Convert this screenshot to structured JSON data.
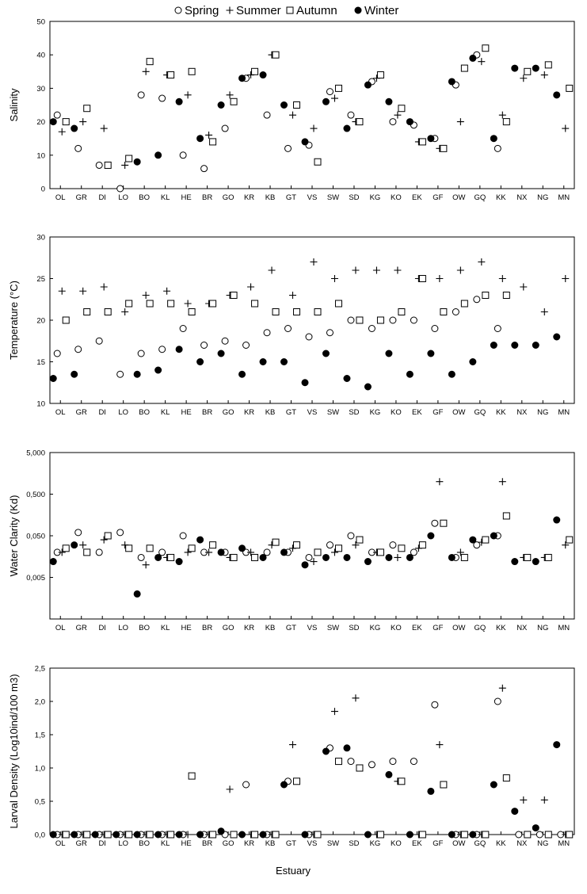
{
  "legend": {
    "items": [
      {
        "label": "Spring",
        "marker": "open-circle"
      },
      {
        "label": "Summer",
        "marker": "plus"
      },
      {
        "label": "Autumn",
        "marker": "open-square"
      },
      {
        "label": "Winter",
        "marker": "filled-circle"
      }
    ]
  },
  "colors": {
    "marker": "#000000",
    "background": "#ffffff"
  },
  "x_axis_title": "Estuary",
  "chart_data": [
    {
      "type": "scatter",
      "ylabel": "Salinity",
      "ylim": [
        0,
        50
      ],
      "yscale": "linear",
      "y_ticks": [
        "0",
        "10",
        "20",
        "30",
        "40",
        "50"
      ],
      "categories": [
        "OL",
        "GR",
        "DI",
        "LO",
        "BO",
        "KL",
        "HE",
        "BR",
        "GO",
        "KR",
        "KB",
        "GT",
        "VS",
        "SW",
        "SD",
        "KG",
        "KO",
        "EK",
        "GF",
        "OW",
        "GQ",
        "KK",
        "NX",
        "NG",
        "MN"
      ],
      "series": [
        {
          "name": "Spring",
          "values": [
            22,
            12,
            7,
            0,
            28,
            27,
            10,
            6,
            18,
            33,
            22,
            12,
            13,
            29,
            22,
            32,
            20,
            19,
            15,
            31,
            40,
            12,
            null,
            null,
            null
          ]
        },
        {
          "name": "Summer",
          "values": [
            17,
            20,
            18,
            7,
            35,
            34,
            28,
            16,
            28,
            34,
            40,
            22,
            18,
            27,
            20,
            33,
            22,
            14,
            12,
            20,
            38,
            22,
            33,
            34,
            18
          ]
        },
        {
          "name": "Autumn",
          "values": [
            20,
            24,
            7,
            9,
            38,
            34,
            35,
            14,
            26,
            35,
            40,
            25,
            8,
            30,
            20,
            34,
            24,
            14,
            12,
            36,
            42,
            20,
            35,
            37,
            30
          ]
        },
        {
          "name": "Winter",
          "values": [
            20,
            18,
            null,
            null,
            8,
            10,
            26,
            15,
            25,
            33,
            34,
            25,
            14,
            26,
            18,
            31,
            26,
            20,
            15,
            32,
            39,
            15,
            36,
            36,
            28
          ]
        }
      ],
      "grid": false
    },
    {
      "type": "scatter",
      "ylabel": "Temperature (°C)",
      "ylim": [
        10,
        30
      ],
      "yscale": "linear",
      "y_ticks": [
        "10",
        "15",
        "20",
        "25",
        "30"
      ],
      "categories": [
        "OL",
        "GR",
        "DI",
        "LO",
        "BO",
        "KL",
        "HE",
        "BR",
        "GO",
        "KR",
        "KB",
        "GT",
        "VS",
        "SW",
        "SD",
        "KG",
        "KO",
        "EK",
        "GF",
        "OW",
        "GQ",
        "KK",
        "NX",
        "NG",
        "MN"
      ],
      "series": [
        {
          "name": "Spring",
          "values": [
            16,
            16.5,
            17.5,
            13.5,
            16,
            16.5,
            19,
            17,
            17.5,
            17,
            18.5,
            19,
            18,
            18.5,
            20,
            19,
            20,
            20,
            19,
            21,
            22.5,
            19,
            null,
            null,
            null
          ]
        },
        {
          "name": "Summer",
          "values": [
            23.5,
            23.5,
            24,
            21,
            23,
            23.5,
            22,
            22,
            23,
            24,
            26,
            23,
            27,
            25,
            26,
            26,
            26,
            25,
            25,
            26,
            27,
            25,
            24,
            21,
            25
          ]
        },
        {
          "name": "Autumn",
          "values": [
            20,
            21,
            21,
            22,
            22,
            22,
            21,
            22,
            23,
            22,
            21,
            21,
            21,
            22,
            20,
            20,
            21,
            25,
            21,
            22,
            23,
            23,
            null,
            null,
            null
          ]
        },
        {
          "name": "Winter",
          "values": [
            13,
            13.5,
            null,
            null,
            13.5,
            14,
            16.5,
            15,
            16,
            13.5,
            15,
            15,
            12.5,
            16,
            13,
            12,
            16,
            13.5,
            16,
            13.5,
            15,
            17,
            17,
            17,
            18
          ]
        }
      ],
      "grid": false
    },
    {
      "type": "scatter",
      "ylabel": "Water Clarity (Kd)",
      "ylim": [
        0.0005,
        5
      ],
      "yscale": "log",
      "y_ticks": [
        "5,000",
        "0,500",
        "0,050",
        "0,005"
      ],
      "categories": [
        "OL",
        "GR",
        "DI",
        "LO",
        "BO",
        "KL",
        "HE",
        "BR",
        "GO",
        "KR",
        "KB",
        "GT",
        "VS",
        "SW",
        "SD",
        "KG",
        "KO",
        "EK",
        "GF",
        "OW",
        "GQ",
        "KK",
        "NX",
        "NG",
        "MN"
      ],
      "series": [
        {
          "name": "Spring",
          "values": [
            0.02,
            0.06,
            0.02,
            0.06,
            0.015,
            0.02,
            0.05,
            0.02,
            0.02,
            0.02,
            0.02,
            0.02,
            0.015,
            0.03,
            0.05,
            0.02,
            0.03,
            0.02,
            0.1,
            0.015,
            0.03,
            0.05,
            null,
            null,
            null
          ]
        },
        {
          "name": "Summer",
          "values": [
            0.02,
            0.03,
            0.04,
            0.03,
            0.01,
            0.015,
            0.02,
            0.02,
            0.015,
            0.02,
            0.03,
            0.025,
            0.012,
            0.02,
            0.03,
            0.02,
            0.015,
            0.025,
            1.0,
            0.02,
            0.035,
            1.0,
            0.015,
            0.015,
            0.03
          ]
        },
        {
          "name": "Autumn",
          "values": [
            0.025,
            0.02,
            0.05,
            0.025,
            0.025,
            0.015,
            0.025,
            0.03,
            0.015,
            0.015,
            0.035,
            0.03,
            0.02,
            0.025,
            0.04,
            0.02,
            0.025,
            0.03,
            0.1,
            0.015,
            0.04,
            0.15,
            0.015,
            0.015,
            0.04
          ]
        },
        {
          "name": "Winter",
          "values": [
            0.012,
            0.03,
            null,
            null,
            0.002,
            0.015,
            0.012,
            0.04,
            0.02,
            0.025,
            0.015,
            0.02,
            0.01,
            0.015,
            0.015,
            0.012,
            0.015,
            0.015,
            0.05,
            0.015,
            0.04,
            0.05,
            0.012,
            0.012,
            0.12
          ]
        }
      ],
      "grid": false
    },
    {
      "type": "scatter",
      "ylabel": "Larval Density (Log10ind/100 m3)",
      "ylim": [
        0,
        2.5
      ],
      "yscale": "linear",
      "y_ticks": [
        "0,0",
        "0,5",
        "1,0",
        "1,5",
        "2,0",
        "2,5"
      ],
      "categories": [
        "OL",
        "GR",
        "DI",
        "LO",
        "BO",
        "KL",
        "HE",
        "BR",
        "GO",
        "KR",
        "KB",
        "GT",
        "VS",
        "SW",
        "SD",
        "KG",
        "KO",
        "EK",
        "GF",
        "OW",
        "GQ",
        "KK",
        "NX",
        "NG",
        "MN"
      ],
      "series": [
        {
          "name": "Spring",
          "values": [
            0,
            0,
            0,
            0,
            0,
            0,
            0,
            0,
            0,
            0.75,
            0,
            0.8,
            0,
            1.3,
            1.1,
            1.05,
            1.1,
            1.1,
            1.95,
            0,
            0,
            2.0,
            0,
            0,
            0
          ]
        },
        {
          "name": "Summer",
          "values": [
            0,
            0,
            0,
            0,
            0,
            0,
            0,
            0,
            0.68,
            0,
            0,
            1.35,
            0,
            1.85,
            2.05,
            0,
            0.8,
            0,
            1.35,
            0,
            0,
            2.2,
            0.52,
            0.52,
            0
          ]
        },
        {
          "name": "Autumn",
          "values": [
            0,
            0,
            0,
            0,
            0,
            0,
            0.88,
            0,
            0,
            0,
            0,
            0.8,
            0,
            1.1,
            1.0,
            0,
            0.8,
            0,
            0.75,
            0,
            0,
            0.85,
            0,
            0,
            0
          ]
        },
        {
          "name": "Winter",
          "values": [
            0,
            0,
            0,
            0,
            0,
            0,
            0,
            0,
            0.05,
            0,
            0,
            0.75,
            0,
            1.25,
            1.3,
            0,
            0.9,
            0,
            0.65,
            0,
            0,
            0.75,
            0.35,
            0.1,
            1.35
          ]
        }
      ],
      "grid": false
    }
  ]
}
